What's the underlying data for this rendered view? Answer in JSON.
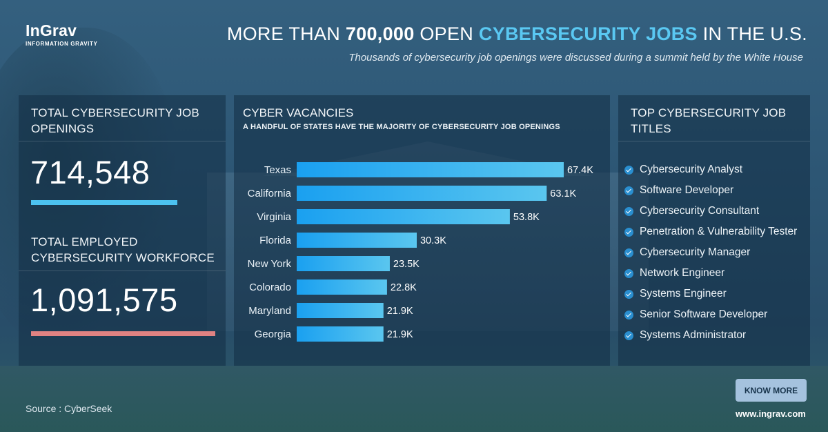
{
  "brand": {
    "name": "InGrav",
    "tagline": "INFORMATION GRAVITY"
  },
  "header": {
    "title_pre": "MORE THAN ",
    "title_number": "700,000",
    "title_mid": " OPEN ",
    "title_accent": "CYBERSECURITY JOBS",
    "title_post": " IN THE U.S.",
    "subtitle": "Thousands of cybersecurity job openings were discussed during a summit held by the White House"
  },
  "stats": {
    "openings_heading": "TOTAL CYBERSECURITY JOB OPENINGS",
    "openings_value": "714,548",
    "workforce_heading": "TOTAL EMPLOYED CYBERSECURITY WORKFORCE",
    "workforce_value": "1,091,575"
  },
  "chart_data": {
    "type": "bar",
    "orientation": "horizontal",
    "title": "CYBER VACANCIES",
    "subtitle": "A HANDFUL OF STATES HAVE THE MAJORITY OF CYBERSECURITY JOB OPENINGS",
    "categories": [
      "Texas",
      "California",
      "Virginia",
      "Florida",
      "New York",
      "Colorado",
      "Maryland",
      "Georgia"
    ],
    "values": [
      67.4,
      63.1,
      53.8,
      30.3,
      23.5,
      22.8,
      21.9,
      21.9
    ],
    "labels": [
      "67.4K",
      "63.1K",
      "53.8K",
      "30.3K",
      "23.5K",
      "22.8K",
      "21.9K",
      "21.9K"
    ],
    "unit": "K",
    "xlim": [
      0,
      67.4
    ],
    "grid": false,
    "bar_color_start": "#1aa0f0",
    "bar_color_end": "#5ac6ef"
  },
  "jobs": {
    "heading": "TOP CYBERSECURITY JOB TITLES",
    "titles": [
      "Cybersecurity Analyst",
      "Software Developer",
      "Cybersecurity Consultant",
      "Penetration & Vulnerability Tester",
      "Cybersecurity Manager",
      "Network Engineer",
      "Systems Engineer",
      "Senior Software Developer",
      "Systems Administrator"
    ]
  },
  "footer": {
    "source": "Source : CyberSeek",
    "button": "KNOW MORE",
    "site": "www.ingrav.com"
  },
  "colors": {
    "accent": "#5ac8f2",
    "openings_bar": "#4cc2f0",
    "workforce_bar": "#e08282",
    "button_bg": "#a5c2de"
  }
}
